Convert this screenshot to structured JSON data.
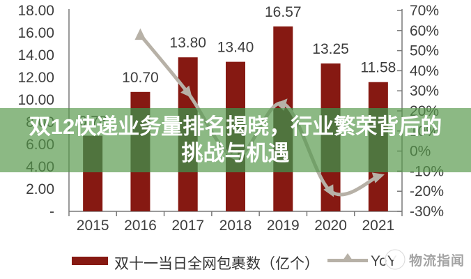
{
  "chart_data": {
    "type": "bar",
    "categories": [
      "2015",
      "2016",
      "2017",
      "2018",
      "2019",
      "2020",
      "2021"
    ],
    "series": [
      {
        "name": "双十一当日全网包裹数（亿个）",
        "type": "bar",
        "values": [
          6.78,
          10.7,
          13.8,
          13.4,
          16.57,
          13.25,
          11.58
        ],
        "labels": [
          "6.78",
          "10.70",
          "13.80",
          "13.40",
          "16.57",
          "13.25",
          "11.58"
        ],
        "color": "#861912"
      },
      {
        "name": "YoY",
        "type": "line",
        "values_pct": [
          null,
          57.8,
          29.0,
          -2.9,
          23.7,
          -20.0,
          -12.6
        ],
        "color": "#B7B1A7"
      }
    ],
    "left_axis": {
      "ticks": [
        "18.00",
        "16.00",
        "14.00",
        "12.00",
        "10.00",
        "8.00",
        "6.00",
        "4.00",
        "2.00",
        "-"
      ],
      "max": 18,
      "min": 0
    },
    "right_axis": {
      "ticks": [
        "70%",
        "60%",
        "50%",
        "40%",
        "30%",
        "20%",
        "10%",
        "0%",
        "-10%",
        "-20%",
        "-30%"
      ],
      "max": 70,
      "min": -30
    },
    "legend_position": "bottom",
    "grid": false
  },
  "overlay": {
    "line1": "双12快递业务量排名揭晓，行业繁荣背后的",
    "line2": "挑战与机遇",
    "bg": "rgba(86,152,73,0.68)",
    "text_color": "#ffffff"
  },
  "legend": {
    "bar_label": "双十一当日全网包裹数（亿个）",
    "line_label": "YoY"
  },
  "watermark": {
    "text": "物流指闻"
  },
  "colors": {
    "bar": "#861912",
    "line": "#B7B1A7",
    "axis": "#787878",
    "text": "#3d3d3d"
  }
}
